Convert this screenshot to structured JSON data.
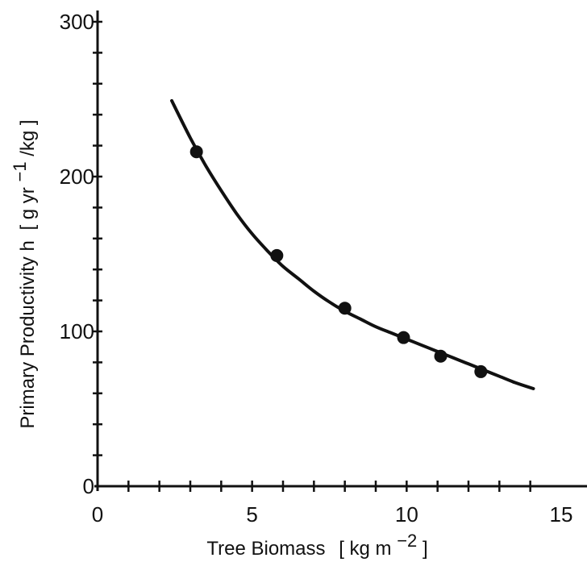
{
  "chart_data": {
    "type": "scatter",
    "xlabel": "Tree Biomass",
    "xlabel_unit_open": "[ kg m",
    "xlabel_unit_exp": "−2",
    "xlabel_unit_close": " ]",
    "ylabel": "Primary Productivity h",
    "ylabel_unit_open": "[ g yr",
    "ylabel_unit_exp": "−1",
    "ylabel_unit_close": "/kg ]",
    "xlim": [
      0,
      15
    ],
    "ylim": [
      0,
      300
    ],
    "x_ticks": [
      0,
      5,
      10,
      15
    ],
    "y_ticks": [
      0,
      100,
      200,
      300
    ],
    "x_minor_step": 1,
    "y_minor_step": 20,
    "grid": false,
    "legend": "none",
    "series": [
      {
        "kind": "points",
        "x": [
          3.2,
          5.8,
          8.0,
          9.9,
          11.1,
          12.4
        ],
        "y": [
          216,
          149,
          115,
          96,
          84,
          74
        ]
      },
      {
        "kind": "fitted-curve",
        "x": [
          2.4,
          3.0,
          3.5,
          4.0,
          4.5,
          5.0,
          5.5,
          6.0,
          6.5,
          7.0,
          7.5,
          8.0,
          8.5,
          9.0,
          9.5,
          10.0,
          10.5,
          11.0,
          11.5,
          12.0,
          12.5,
          13.0,
          13.5,
          14.1
        ],
        "y": [
          249,
          225,
          207,
          191,
          176,
          163,
          152,
          142,
          134,
          126,
          119,
          113,
          108,
          103,
          99,
          95,
          91,
          87,
          83,
          79,
          75,
          71,
          67,
          63
        ]
      }
    ]
  }
}
